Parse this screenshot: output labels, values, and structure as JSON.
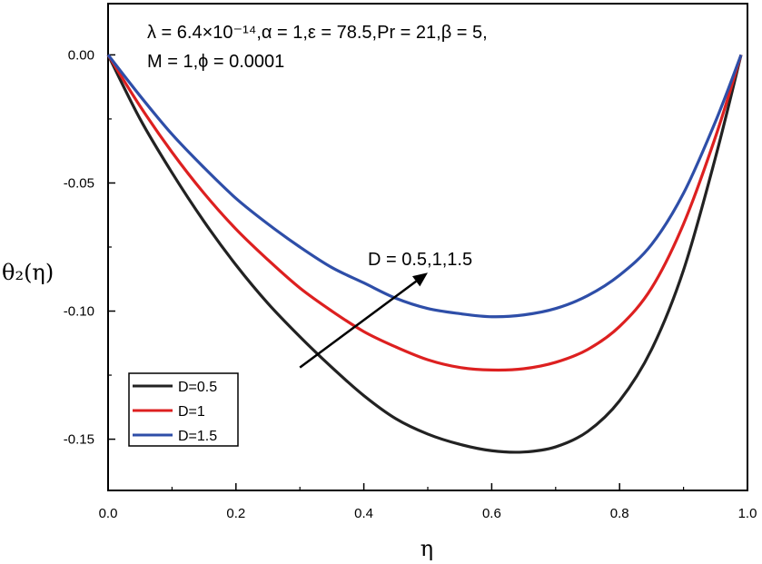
{
  "chart_data": {
    "type": "line",
    "title": "",
    "xlabel": "η",
    "ylabel": "θ₂(η)",
    "xlim": [
      0.0,
      1.0
    ],
    "ylim": [
      -0.17,
      0.02
    ],
    "x_ticks": [
      "0.0",
      "0.2",
      "0.4",
      "0.6",
      "0.8",
      "1.0"
    ],
    "y_ticks": [
      "0.00",
      "-0.05",
      "-0.10",
      "-0.15"
    ],
    "x_tick_values": [
      0.0,
      0.2,
      0.4,
      0.6,
      0.8,
      1.0
    ],
    "y_tick_values": [
      0.0,
      -0.05,
      -0.1,
      -0.15
    ],
    "params_line1": "λ = 6.4×10⁻¹⁴,α = 1,ε = 78.5,Pr = 21,β = 5,",
    "params_line2": "M = 1,ϕ = 0.0001",
    "arrow_label": "D = 0.5,1,1.5",
    "arrow_from": [
      0.3,
      -0.122
    ],
    "arrow_to": [
      0.5,
      -0.085
    ],
    "legend_position": "bottom-left",
    "series": [
      {
        "name": "D=0.5",
        "color": "#222222",
        "x": [
          0.0,
          0.05,
          0.1,
          0.15,
          0.2,
          0.25,
          0.3,
          0.35,
          0.4,
          0.45,
          0.5,
          0.55,
          0.6,
          0.65,
          0.7,
          0.75,
          0.8,
          0.85,
          0.9,
          0.95,
          0.99
        ],
        "values": [
          0.0,
          -0.025,
          -0.046,
          -0.065,
          -0.082,
          -0.097,
          -0.11,
          -0.122,
          -0.133,
          -0.142,
          -0.148,
          -0.152,
          -0.1545,
          -0.155,
          -0.153,
          -0.147,
          -0.135,
          -0.115,
          -0.084,
          -0.04,
          0.0
        ]
      },
      {
        "name": "D=1",
        "color": "#dd2020",
        "x": [
          0.0,
          0.05,
          0.1,
          0.15,
          0.2,
          0.25,
          0.3,
          0.35,
          0.4,
          0.45,
          0.5,
          0.55,
          0.6,
          0.65,
          0.7,
          0.75,
          0.8,
          0.85,
          0.9,
          0.95,
          0.99
        ],
        "values": [
          0.0,
          -0.02,
          -0.038,
          -0.054,
          -0.068,
          -0.08,
          -0.091,
          -0.1,
          -0.108,
          -0.114,
          -0.119,
          -0.122,
          -0.123,
          -0.1225,
          -0.12,
          -0.115,
          -0.106,
          -0.091,
          -0.066,
          -0.032,
          0.0
        ]
      },
      {
        "name": "D=1.5",
        "color": "#2e4ea8",
        "x": [
          0.0,
          0.05,
          0.1,
          0.15,
          0.2,
          0.25,
          0.3,
          0.35,
          0.4,
          0.45,
          0.5,
          0.55,
          0.6,
          0.65,
          0.7,
          0.75,
          0.8,
          0.85,
          0.9,
          0.95,
          0.99
        ],
        "values": [
          0.0,
          -0.016,
          -0.031,
          -0.044,
          -0.056,
          -0.066,
          -0.075,
          -0.083,
          -0.089,
          -0.095,
          -0.099,
          -0.101,
          -0.1022,
          -0.1015,
          -0.099,
          -0.094,
          -0.086,
          -0.074,
          -0.054,
          -0.026,
          0.0
        ]
      }
    ]
  }
}
